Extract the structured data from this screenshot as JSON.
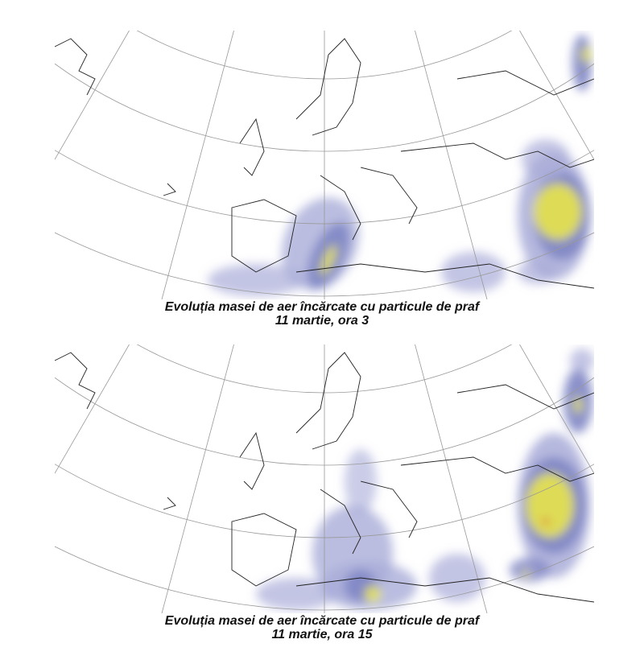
{
  "figures": [
    {
      "caption_line1": "Evoluția masei de aer încărcate cu particule de praf",
      "caption_line2": "11 martie, ora 3"
    },
    {
      "caption_line1": "Evoluția masei de aer încărcate cu particule de praf",
      "caption_line2": "11 martie, ora 15"
    }
  ],
  "colors": {
    "low": "#a9acd8",
    "mid": "#7f86c4",
    "high": "#e8e64a",
    "peak": "#e03a2a"
  }
}
